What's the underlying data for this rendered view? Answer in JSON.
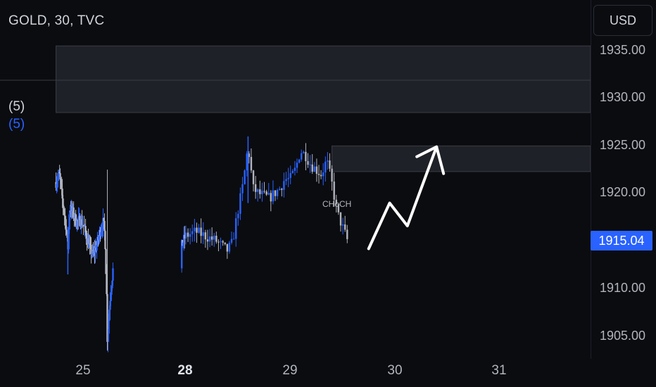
{
  "header": {
    "symbol_title": "GOLD, 30, TVC"
  },
  "indicators": {
    "label_a": "(5)",
    "label_b": "(5)"
  },
  "currency": {
    "label": "USD"
  },
  "price_axis": {
    "ticks": [
      "1935.00",
      "1930.00",
      "1925.00",
      "1920.00",
      "1910.00",
      "1905.00"
    ],
    "current_price": "1915.04"
  },
  "time_axis": {
    "ticks": [
      "25",
      "28",
      "29",
      "30",
      "31"
    ]
  },
  "annotations": {
    "choch": "CHoCH"
  },
  "colors": {
    "background": "#0b0c10",
    "bull_candle": "#2962ff",
    "bear_candle": "#b2b5be",
    "zone_fill": "#1f2128",
    "arrow": "#ffffff",
    "price_badge": "#2962ff"
  },
  "chart_data": {
    "type": "candlestick",
    "symbol": "GOLD",
    "interval": "30",
    "source": "TVC",
    "ylim": [
      1902.5,
      1938.5
    ],
    "price_ticks": [
      1935.0,
      1930.0,
      1925.0,
      1920.0,
      1915.04,
      1910.0,
      1905.0
    ],
    "last_price": 1915.04,
    "zones": [
      {
        "from_date": "24.2",
        "to_date": "31.9",
        "low": 1928.5,
        "high": 1935.5
      },
      {
        "from_date": "29.4",
        "to_date": "31.9",
        "low": 1922.3,
        "high": 1925.0
      }
    ],
    "close_path": [
      {
        "date": 24.2,
        "price": 1921.2
      },
      {
        "date": 24.3,
        "price": 1922.0
      },
      {
        "date": 24.4,
        "price": 1919.0
      },
      {
        "date": 24.5,
        "price": 1916.5
      },
      {
        "date": 24.55,
        "price": 1914.0
      },
      {
        "date": 24.6,
        "price": 1918.5
      },
      {
        "date": 24.7,
        "price": 1918.0
      },
      {
        "date": 24.8,
        "price": 1917.0
      },
      {
        "date": 24.9,
        "price": 1917.2
      },
      {
        "date": 25.0,
        "price": 1916.8
      },
      {
        "date": 25.1,
        "price": 1915.5
      },
      {
        "date": 25.2,
        "price": 1914.2
      },
      {
        "date": 25.3,
        "price": 1913.5
      },
      {
        "date": 25.4,
        "price": 1914.5
      },
      {
        "date": 25.5,
        "price": 1916.0
      },
      {
        "date": 25.6,
        "price": 1917.0
      },
      {
        "date": 25.65,
        "price": 1915.5
      },
      {
        "date": 25.7,
        "price": 1909.0
      },
      {
        "date": 25.72,
        "price": 1904.5
      },
      {
        "date": 25.8,
        "price": 1909.0
      },
      {
        "date": 25.9,
        "price": 1912.5
      },
      {
        "date": 27.9,
        "price": 1914.5
      },
      {
        "date": 28.0,
        "price": 1915.5
      },
      {
        "date": 28.1,
        "price": 1916.0
      },
      {
        "date": 28.2,
        "price": 1915.5
      },
      {
        "date": 28.3,
        "price": 1915.0
      },
      {
        "date": 28.4,
        "price": 1914.0
      },
      {
        "date": 28.45,
        "price": 1914.8
      },
      {
        "date": 28.5,
        "price": 1918.0
      },
      {
        "date": 28.55,
        "price": 1920.8
      },
      {
        "date": 28.6,
        "price": 1925.0
      },
      {
        "date": 28.65,
        "price": 1920.5
      },
      {
        "date": 28.7,
        "price": 1920.0
      },
      {
        "date": 28.8,
        "price": 1919.5
      },
      {
        "date": 28.9,
        "price": 1920.5
      },
      {
        "date": 28.95,
        "price": 1921.5
      },
      {
        "date": 29.0,
        "price": 1921.5
      },
      {
        "date": 29.05,
        "price": 1922.5
      },
      {
        "date": 29.1,
        "price": 1924.5
      },
      {
        "date": 29.15,
        "price": 1924.0
      },
      {
        "date": 29.2,
        "price": 1923.0
      },
      {
        "date": 29.25,
        "price": 1922.5
      },
      {
        "date": 29.3,
        "price": 1922.0
      },
      {
        "date": 29.35,
        "price": 1923.5
      },
      {
        "date": 29.4,
        "price": 1921.0
      },
      {
        "date": 29.45,
        "price": 1918.0
      },
      {
        "date": 29.5,
        "price": 1916.5
      },
      {
        "date": 29.55,
        "price": 1915.0
      }
    ],
    "projection_arrow": [
      {
        "date": 29.75,
        "price": 1914.2
      },
      {
        "date": 29.95,
        "price": 1919.0
      },
      {
        "date": 30.12,
        "price": 1916.6
      },
      {
        "date": 30.4,
        "price": 1924.9
      }
    ]
  }
}
